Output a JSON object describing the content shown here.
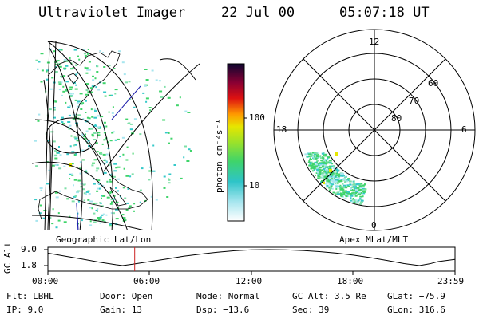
{
  "header": {
    "instrument": "Ultraviolet Imager",
    "date": "22 Jul 00",
    "time": "05:07:18 UT"
  },
  "colorbar": {
    "unit_label": "photon cm⁻²s⁻¹",
    "ticks": [
      "100",
      "10"
    ]
  },
  "geo_panel": {
    "caption": "Geographic Lat/Lon"
  },
  "polar_panel": {
    "caption": "Apex MLat/MLT",
    "mlt_labels": [
      "12",
      "18",
      "6",
      "0"
    ],
    "lat_labels": [
      "60",
      "70",
      "80"
    ]
  },
  "altitude_plot": {
    "ylabel": "GC Alt",
    "yticks": [
      "9.0",
      "1.8"
    ],
    "xticks": [
      "00:00",
      "06:00",
      "12:00",
      "18:00",
      "23:59"
    ],
    "marker_time": "05:07"
  },
  "info": {
    "filter": "Flt: LBHL",
    "ip": "IP:  9.0",
    "door": "Door: Open",
    "gain": "Gain: 13",
    "mode": "Mode: Normal",
    "dsp": "Dsp:  −13.6",
    "gc_alt": "GC Alt: 3.5 Re",
    "seq": "Seq: 39",
    "glat": "GLat: −75.9",
    "glon": "GLon: 316.6"
  },
  "colors": {
    "aurora_green": "#3fd46a",
    "aurora_cyan": "#35c9c9",
    "aurora_yellow": "#e6e600",
    "marker_red": "#cc2222"
  }
}
